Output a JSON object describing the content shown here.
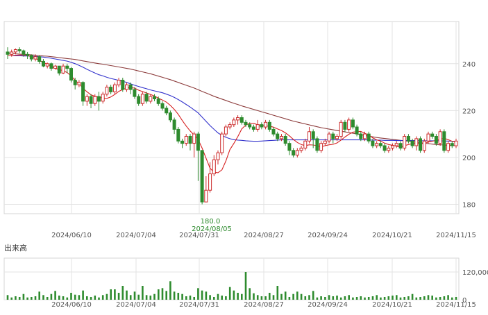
{
  "chart_data": {
    "type": "candlestick",
    "y_axis": {
      "ticks": [
        180,
        200,
        220,
        240
      ],
      "range": [
        176,
        258
      ],
      "position": "right"
    },
    "x_axis": {
      "ticks": [
        "2024/06/10",
        "2024/07/04",
        "2024/07/31",
        "2024/08/27",
        "2024/09/24",
        "2024/10/21",
        "2024/11/15"
      ]
    },
    "grid": true,
    "low_annotation": {
      "value": "180.0",
      "date": "2024/08/05"
    },
    "candles": [
      [
        245.0,
        244.0,
        247.0,
        242.0
      ],
      [
        244.0,
        245.0,
        246.0,
        243.0
      ],
      [
        245.0,
        246.0,
        246.5,
        244.0
      ],
      [
        246.0,
        245.5,
        247.0,
        244.5
      ],
      [
        245.5,
        244.0,
        246.0,
        243.0
      ],
      [
        244.0,
        243.5,
        245.0,
        242.0
      ],
      [
        243.5,
        242.0,
        244.0,
        241.0
      ],
      [
        242.0,
        243.0,
        244.0,
        241.0
      ],
      [
        243.0,
        241.0,
        243.5,
        240.0
      ],
      [
        241.0,
        239.0,
        242.0,
        238.5
      ],
      [
        239.0,
        240.0,
        240.5,
        238.0
      ],
      [
        240.0,
        238.0,
        240.5,
        237.0
      ],
      [
        238.0,
        239.0,
        239.5,
        237.5
      ],
      [
        239.0,
        236.0,
        239.0,
        235.0
      ],
      [
        236.0,
        239.0,
        240.0,
        235.5
      ],
      [
        239.0,
        238.0,
        240.0,
        236.0
      ],
      [
        238.0,
        233.0,
        238.5,
        232.0
      ],
      [
        233.0,
        231.0,
        234.0,
        229.0
      ],
      [
        231.0,
        232.0,
        233.0,
        230.0
      ],
      [
        232.0,
        224.0,
        232.5,
        222.0
      ],
      [
        224.0,
        226.0,
        227.0,
        222.0
      ],
      [
        226.0,
        223.0,
        227.0,
        221.0
      ],
      [
        223.0,
        226.0,
        227.0,
        222.0
      ],
      [
        226.0,
        224.0,
        228.0,
        220.0
      ],
      [
        224.0,
        227.0,
        228.0,
        223.0
      ],
      [
        227.0,
        230.0,
        231.0,
        226.0
      ],
      [
        230.0,
        228.0,
        231.0,
        227.0
      ],
      [
        228.0,
        231.0,
        232.0,
        227.0
      ],
      [
        231.0,
        233.0,
        234.0,
        230.0
      ],
      [
        233.0,
        229.0,
        234.0,
        228.0
      ],
      [
        229.0,
        231.0,
        232.0,
        228.0
      ],
      [
        231.0,
        229.0,
        232.0,
        227.0
      ],
      [
        229.0,
        226.0,
        230.0,
        225.0
      ],
      [
        226.0,
        223.0,
        227.0,
        222.0
      ],
      [
        223.0,
        227.0,
        228.0,
        222.0
      ],
      [
        227.0,
        224.0,
        228.0,
        223.0
      ],
      [
        224.0,
        226.0,
        227.0,
        223.0
      ],
      [
        226.0,
        225.0,
        227.0,
        224.0
      ],
      [
        225.0,
        223.0,
        226.0,
        222.0
      ],
      [
        223.0,
        221.0,
        224.0,
        220.0
      ],
      [
        221.0,
        219.0,
        222.0,
        218.0
      ],
      [
        219.0,
        216.0,
        220.0,
        215.0
      ],
      [
        216.0,
        212.0,
        217.0,
        210.0
      ],
      [
        212.0,
        207.0,
        213.0,
        206.0
      ],
      [
        207.0,
        206.0,
        208.0,
        204.0
      ],
      [
        206.0,
        209.0,
        210.0,
        205.0
      ],
      [
        209.0,
        206.0,
        210.0,
        203.0
      ],
      [
        206.0,
        210.0,
        211.0,
        200.0
      ],
      [
        210.0,
        203.0,
        211.0,
        190.0
      ],
      [
        203.0,
        181.0,
        203.0,
        180.0
      ],
      [
        181.0,
        186.0,
        192.0,
        181.0
      ],
      [
        186.0,
        193.0,
        198.0,
        185.0
      ],
      [
        193.0,
        199.0,
        201.0,
        192.0
      ],
      [
        199.0,
        202.0,
        203.0,
        197.0
      ],
      [
        202.0,
        210.0,
        211.0,
        201.0
      ],
      [
        210.0,
        213.0,
        214.0,
        209.0
      ],
      [
        213.0,
        214.0,
        215.0,
        212.0
      ],
      [
        214.0,
        216.0,
        217.0,
        213.0
      ],
      [
        216.0,
        217.0,
        218.0,
        214.0
      ],
      [
        217.0,
        215.0,
        218.0,
        214.0
      ],
      [
        215.0,
        214.0,
        216.0,
        213.0
      ],
      [
        214.0,
        213.0,
        215.0,
        212.0
      ],
      [
        213.0,
        212.0,
        214.0,
        211.0
      ],
      [
        212.0,
        214.0,
        216.0,
        211.0
      ],
      [
        214.0,
        213.0,
        215.0,
        212.0
      ],
      [
        213.0,
        215.0,
        216.0,
        212.0
      ],
      [
        215.0,
        212.0,
        216.0,
        211.0
      ],
      [
        212.0,
        210.0,
        213.0,
        209.0
      ],
      [
        210.0,
        208.0,
        211.0,
        207.0
      ],
      [
        208.0,
        209.0,
        210.0,
        207.0
      ],
      [
        209.0,
        206.0,
        210.0,
        205.0
      ],
      [
        206.0,
        203.0,
        207.0,
        201.0
      ],
      [
        203.0,
        201.0,
        204.0,
        200.0
      ],
      [
        201.0,
        203.0,
        204.0,
        200.0
      ],
      [
        203.0,
        204.0,
        205.0,
        202.0
      ],
      [
        204.0,
        207.0,
        208.0,
        203.0
      ],
      [
        207.0,
        211.0,
        213.0,
        206.0
      ],
      [
        211.0,
        208.0,
        212.0,
        204.0
      ],
      [
        208.0,
        203.0,
        209.0,
        202.0
      ],
      [
        203.0,
        206.0,
        207.0,
        202.0
      ],
      [
        206.0,
        207.0,
        208.0,
        205.0
      ],
      [
        207.0,
        210.0,
        211.0,
        206.0
      ],
      [
        210.0,
        208.0,
        211.0,
        206.0
      ],
      [
        208.0,
        209.0,
        210.0,
        207.0
      ],
      [
        209.0,
        215.0,
        216.0,
        208.0
      ],
      [
        215.0,
        212.0,
        216.0,
        211.0
      ],
      [
        212.0,
        216.0,
        217.0,
        211.0
      ],
      [
        216.0,
        213.0,
        217.0,
        212.0
      ],
      [
        213.0,
        210.0,
        214.0,
        209.0
      ],
      [
        210.0,
        208.0,
        211.0,
        207.0
      ],
      [
        208.0,
        210.0,
        211.0,
        207.0
      ],
      [
        210.0,
        207.0,
        211.0,
        206.0
      ],
      [
        207.0,
        205.0,
        208.0,
        204.0
      ],
      [
        205.0,
        206.0,
        207.0,
        204.0
      ],
      [
        206.0,
        205.0,
        207.0,
        204.0
      ],
      [
        205.0,
        203.0,
        206.0,
        202.0
      ],
      [
        203.0,
        204.0,
        205.0,
        202.0
      ],
      [
        204.0,
        205.0,
        206.0,
        203.0
      ],
      [
        205.0,
        206.0,
        207.0,
        204.0
      ],
      [
        206.0,
        204.0,
        207.0,
        203.0
      ],
      [
        204.0,
        209.0,
        210.0,
        203.0
      ],
      [
        209.0,
        207.0,
        210.0,
        206.0
      ],
      [
        207.0,
        205.0,
        208.0,
        204.0
      ],
      [
        205.0,
        208.0,
        209.0,
        203.0
      ],
      [
        208.0,
        203.0,
        209.0,
        202.0
      ],
      [
        203.0,
        207.0,
        208.0,
        202.0
      ],
      [
        207.0,
        210.0,
        211.0,
        206.0
      ],
      [
        210.0,
        209.0,
        211.0,
        208.0
      ],
      [
        209.0,
        206.0,
        210.0,
        205.0
      ],
      [
        206.0,
        211.0,
        212.0,
        205.0
      ],
      [
        211.0,
        203.0,
        212.0,
        202.0
      ],
      [
        203.0,
        206.0,
        207.0,
        202.0
      ],
      [
        206.0,
        205.0,
        207.0,
        204.0
      ],
      [
        205.0,
        207.0,
        208.0,
        204.0
      ]
    ],
    "ma_short": [
      243.5,
      243.5,
      243.6,
      243.7,
      243.7,
      243.5,
      243.0,
      242.2,
      241.4,
      240.5,
      239.8,
      238.9,
      238.0,
      237.5,
      237.0,
      236.2,
      234.8,
      232.9,
      231.5,
      229.5,
      228.0,
      226.7,
      226.1,
      225.8,
      225.3,
      225.2,
      225.8,
      226.9,
      228.2,
      229.0,
      229.6,
      229.8,
      229.6,
      228.7,
      228.1,
      227.5,
      226.9,
      226.2,
      225.3,
      224.5,
      223.6,
      222.2,
      220.5,
      218.4,
      215.8,
      213.4,
      211.3,
      209.5,
      207.7,
      204.0,
      199.7,
      195.4,
      193.7,
      193.5,
      194.7,
      198.5,
      203.3,
      206.0,
      208.9,
      212.2,
      213.8,
      214.6,
      214.6,
      213.9,
      213.7,
      213.4,
      213.4,
      212.9,
      212.2,
      211.5,
      210.5,
      209.2,
      207.7,
      206.4,
      205.5,
      205.0,
      205.4,
      205.3,
      205.0,
      204.6,
      205.0,
      205.4,
      205.6,
      206.2,
      207.4,
      208.7,
      209.9,
      210.8,
      211.0,
      211.1,
      210.3,
      209.6,
      208.4,
      207.5,
      207.0,
      206.1,
      205.5,
      205.2,
      204.8,
      204.4,
      205.0,
      205.5,
      205.9,
      206.2,
      205.9,
      205.9,
      206.6,
      206.9,
      207.3,
      207.7,
      208.2,
      207.6,
      206.9,
      206.6
    ],
    "ma_mid": [
      243.5,
      243.5,
      243.4,
      243.4,
      243.3,
      243.3,
      243.2,
      243.1,
      243.0,
      242.8,
      242.6,
      242.3,
      242.0,
      241.7,
      241.4,
      241.1,
      240.6,
      240.0,
      239.3,
      238.5,
      237.6,
      236.8,
      236.0,
      235.3,
      234.8,
      234.2,
      233.7,
      233.3,
      232.9,
      232.5,
      232.0,
      231.4,
      230.8,
      230.3,
      229.8,
      229.3,
      228.8,
      228.4,
      228.0,
      227.6,
      227.0,
      226.4,
      225.6,
      224.7,
      223.7,
      222.6,
      221.5,
      220.3,
      219.0,
      217.2,
      215.4,
      213.6,
      212.0,
      210.5,
      209.4,
      208.6,
      208.0,
      207.6,
      207.4,
      207.3,
      207.1,
      207.0,
      206.9,
      206.9,
      207.0,
      207.1,
      207.2,
      207.3,
      207.4,
      207.5,
      207.5,
      207.5,
      207.5,
      207.5,
      207.5,
      207.5,
      207.5,
      207.5,
      207.5,
      207.5,
      207.5,
      207.5,
      207.5,
      207.5,
      207.5,
      207.5,
      207.5,
      207.5,
      207.5,
      207.5,
      207.5,
      207.5,
      207.4,
      207.4,
      207.4,
      207.3,
      207.3,
      207.3,
      207.2,
      207.2,
      207.2,
      207.2,
      207.2,
      207.2,
      207.1,
      207.1,
      207.1,
      207.1,
      207.1,
      207.1,
      207.0,
      207.0,
      206.9,
      206.9
    ],
    "ma_long": [
      244.5,
      244.4,
      244.2,
      244.1,
      244.0,
      243.9,
      243.8,
      243.6,
      243.5,
      243.3,
      243.2,
      243.0,
      242.8,
      242.6,
      242.4,
      242.2,
      242.0,
      241.8,
      241.5,
      241.2,
      240.9,
      240.6,
      240.3,
      240.0,
      239.8,
      239.5,
      239.2,
      238.9,
      238.6,
      238.3,
      238.0,
      237.7,
      237.3,
      236.9,
      236.5,
      236.1,
      235.7,
      235.2,
      234.7,
      234.2,
      233.7,
      233.2,
      232.6,
      232.0,
      231.4,
      230.8,
      230.2,
      229.6,
      228.9,
      228.2,
      227.5,
      226.8,
      226.1,
      225.5,
      224.9,
      224.3,
      223.7,
      223.1,
      222.6,
      222.0,
      221.5,
      221.0,
      220.5,
      220.0,
      219.5,
      219.0,
      218.5,
      218.0,
      217.5,
      217.0,
      216.5,
      216.0,
      215.5,
      215.1,
      214.7,
      214.3,
      213.9,
      213.5,
      213.1,
      212.7,
      212.4,
      212.1,
      211.8,
      211.5,
      211.2,
      210.9,
      210.6,
      210.3,
      210.0,
      209.7,
      209.4,
      209.1,
      208.8,
      208.5,
      208.3,
      208.1,
      207.9,
      207.7,
      207.5,
      207.3,
      207.1,
      206.9,
      206.7,
      206.5,
      206.3,
      206.1,
      205.9,
      205.7,
      205.5,
      205.4,
      205.3,
      205.2,
      205.1,
      205.0
    ],
    "volume": {
      "label": "出来高",
      "ticks": [
        0,
        120000
      ],
      "tick_labels": [
        "0",
        "120,000"
      ],
      "range": [
        0,
        180000
      ],
      "values": [
        20000,
        10000,
        15000,
        12000,
        25000,
        10000,
        12000,
        15000,
        35000,
        20000,
        12000,
        25000,
        38000,
        18000,
        15000,
        10000,
        30000,
        22000,
        20000,
        40000,
        15000,
        12000,
        18000,
        10000,
        20000,
        25000,
        45000,
        45000,
        30000,
        60000,
        40000,
        20000,
        35000,
        22000,
        60000,
        20000,
        18000,
        25000,
        45000,
        50000,
        38000,
        80000,
        35000,
        30000,
        25000,
        15000,
        18000,
        12000,
        50000,
        40000,
        35000,
        20000,
        12000,
        25000,
        18000,
        15000,
        55000,
        40000,
        30000,
        25000,
        120000,
        50000,
        28000,
        20000,
        15000,
        15000,
        30000,
        20000,
        60000,
        25000,
        35000,
        12000,
        25000,
        35000,
        25000,
        15000,
        20000,
        38000,
        10000,
        15000,
        12000,
        20000,
        15000,
        18000,
        10000,
        15000,
        20000,
        10000,
        12000,
        15000,
        10000,
        12000,
        15000,
        20000,
        10000,
        12000,
        15000,
        18000,
        20000,
        10000,
        12000,
        15000,
        25000,
        10000,
        12000,
        15000,
        20000,
        18000,
        10000,
        12000,
        15000,
        20000,
        10000,
        12000
      ]
    }
  }
}
